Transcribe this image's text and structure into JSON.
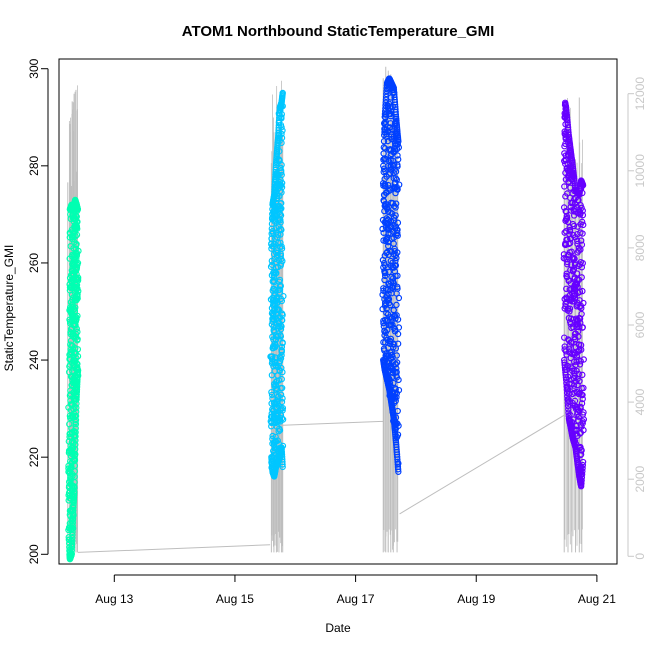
{
  "chart_data": {
    "type": "scatter",
    "title": "ATOM1 Northbound StaticTemperature_GMI",
    "xlabel": "Date",
    "ylabel": "StaticTemperature_GMI",
    "xlim": [
      "2022-08-12T02:00",
      "2022-08-21T08:00"
    ],
    "ylim": [
      198,
      302
    ],
    "y2lim": [
      -200,
      12900
    ],
    "x_ticks": [
      {
        "date": "2022-08-13",
        "label": "Aug 13"
      },
      {
        "date": "2022-08-15",
        "label": "Aug 15"
      },
      {
        "date": "2022-08-17",
        "label": "Aug 17"
      },
      {
        "date": "2022-08-19",
        "label": "Aug 19"
      },
      {
        "date": "2022-08-21",
        "label": "Aug 21"
      }
    ],
    "y_ticks": [
      200,
      220,
      240,
      260,
      280,
      300
    ],
    "y2_ticks": [
      0,
      2000,
      4000,
      6000,
      8000,
      10000,
      12000
    ],
    "grid": false,
    "colors": {
      "axis": "#000000",
      "altitude_line": "#bebebe",
      "right_axis": "#c8c8c8"
    },
    "series": [
      {
        "color": "#00FFB2",
        "x_start": "2022-08-12T06:00",
        "x_end": "2022-08-12T09:30",
        "y_min": 199,
        "y_max": 273,
        "upper_shape": [
          [
            0,
            203
          ],
          [
            0.05,
            250
          ],
          [
            0.1,
            271
          ],
          [
            0.3,
            272
          ],
          [
            0.5,
            271
          ],
          [
            0.7,
            273
          ],
          [
            0.85,
            272
          ],
          [
            1,
            271
          ]
        ],
        "lower_shape": [
          [
            0,
            203
          ],
          [
            0.05,
            200
          ],
          [
            0.1,
            199
          ],
          [
            0.3,
            200
          ],
          [
            0.5,
            210
          ],
          [
            0.6,
            213
          ],
          [
            0.7,
            222
          ],
          [
            0.85,
            232
          ],
          [
            1,
            238
          ]
        ],
        "altitude_spikes": [
          [
            "2022-08-12T05:30",
            9700
          ],
          [
            "2022-08-12T06:30",
            11000
          ],
          [
            "2022-08-12T07:15",
            11800
          ],
          [
            "2022-08-12T08:00",
            12000
          ],
          [
            "2022-08-12T08:45",
            12100
          ],
          [
            "2022-08-12T09:20",
            11600
          ]
        ]
      },
      {
        "color": "#00C6FF",
        "x_start": "2022-08-15T14:30",
        "x_end": "2022-08-15T19:00",
        "y_min": 216,
        "y_max": 295,
        "upper_shape": [
          [
            0,
            264
          ],
          [
            0.1,
            272
          ],
          [
            0.25,
            274
          ],
          [
            0.4,
            280
          ],
          [
            0.6,
            286
          ],
          [
            0.75,
            292
          ],
          [
            0.9,
            293
          ],
          [
            1,
            295
          ]
        ],
        "lower_shape": [
          [
            0,
            220
          ],
          [
            0.1,
            217
          ],
          [
            0.25,
            216
          ],
          [
            0.4,
            218
          ],
          [
            0.6,
            219
          ],
          [
            0.75,
            220
          ],
          [
            0.9,
            222
          ],
          [
            1,
            218
          ]
        ],
        "altitude_spikes": [
          [
            "2022-08-15T14:30",
            10200
          ],
          [
            "2022-08-15T15:30",
            11000
          ],
          [
            "2022-08-15T16:30",
            11300
          ],
          [
            "2022-08-15T17:30",
            11200
          ],
          [
            "2022-08-15T18:30",
            11500
          ],
          [
            "2022-08-15T19:00",
            10900
          ]
        ]
      },
      {
        "color": "#0040FF",
        "x_start": "2022-08-17T11:00",
        "x_end": "2022-08-17T17:00",
        "y_min": 217,
        "y_max": 298,
        "upper_shape": [
          [
            0,
            280
          ],
          [
            0.1,
            290
          ],
          [
            0.25,
            297
          ],
          [
            0.4,
            298
          ],
          [
            0.55,
            297
          ],
          [
            0.7,
            296
          ],
          [
            0.85,
            290
          ],
          [
            1,
            285
          ]
        ],
        "lower_shape": [
          [
            0,
            240
          ],
          [
            0.1,
            238
          ],
          [
            0.25,
            236
          ],
          [
            0.4,
            234
          ],
          [
            0.55,
            231
          ],
          [
            0.7,
            228
          ],
          [
            0.85,
            223
          ],
          [
            1,
            217
          ]
        ],
        "altitude_spikes": [
          [
            "2022-08-17T11:00",
            12400
          ],
          [
            "2022-08-17T12:00",
            12700
          ],
          [
            "2022-08-17T13:00",
            12600
          ],
          [
            "2022-08-17T14:00",
            12500
          ],
          [
            "2022-08-17T15:00",
            12200
          ],
          [
            "2022-08-17T16:30",
            11900
          ]
        ]
      },
      {
        "color": "#6600FF",
        "x_start": "2022-08-20T11:00",
        "x_end": "2022-08-20T18:30",
        "y_min": 214,
        "y_max": 293,
        "upper_shape": [
          [
            0,
            281
          ],
          [
            0.05,
            293
          ],
          [
            0.1,
            292
          ],
          [
            0.25,
            286
          ],
          [
            0.45,
            280
          ],
          [
            0.6,
            275
          ],
          [
            0.8,
            274
          ],
          [
            0.9,
            277
          ],
          [
            1,
            276
          ]
        ],
        "lower_shape": [
          [
            0,
            240
          ],
          [
            0.1,
            236
          ],
          [
            0.25,
            228
          ],
          [
            0.45,
            224
          ],
          [
            0.6,
            222
          ],
          [
            0.8,
            216
          ],
          [
            0.9,
            214
          ],
          [
            1,
            219
          ]
        ],
        "altitude_spikes": [
          [
            "2022-08-20T11:00",
            10100
          ],
          [
            "2022-08-20T12:30",
            11100
          ],
          [
            "2022-08-20T14:00",
            10500
          ],
          [
            "2022-08-20T15:30",
            10300
          ],
          [
            "2022-08-20T17:00",
            11900
          ],
          [
            "2022-08-20T18:00",
            10200
          ]
        ]
      }
    ],
    "altitude_connectors": [
      {
        "from": [
          "2022-08-12T09:30",
          100
        ],
        "to": [
          "2022-08-15T14:00",
          300
        ]
      },
      {
        "from": [
          "2022-08-15T19:00",
          3400
        ],
        "to": [
          "2022-08-17T11:00",
          3500
        ]
      },
      {
        "from": [
          "2022-08-17T17:30",
          1100
        ],
        "to": [
          "2022-08-20T12:00",
          3700
        ]
      }
    ]
  }
}
